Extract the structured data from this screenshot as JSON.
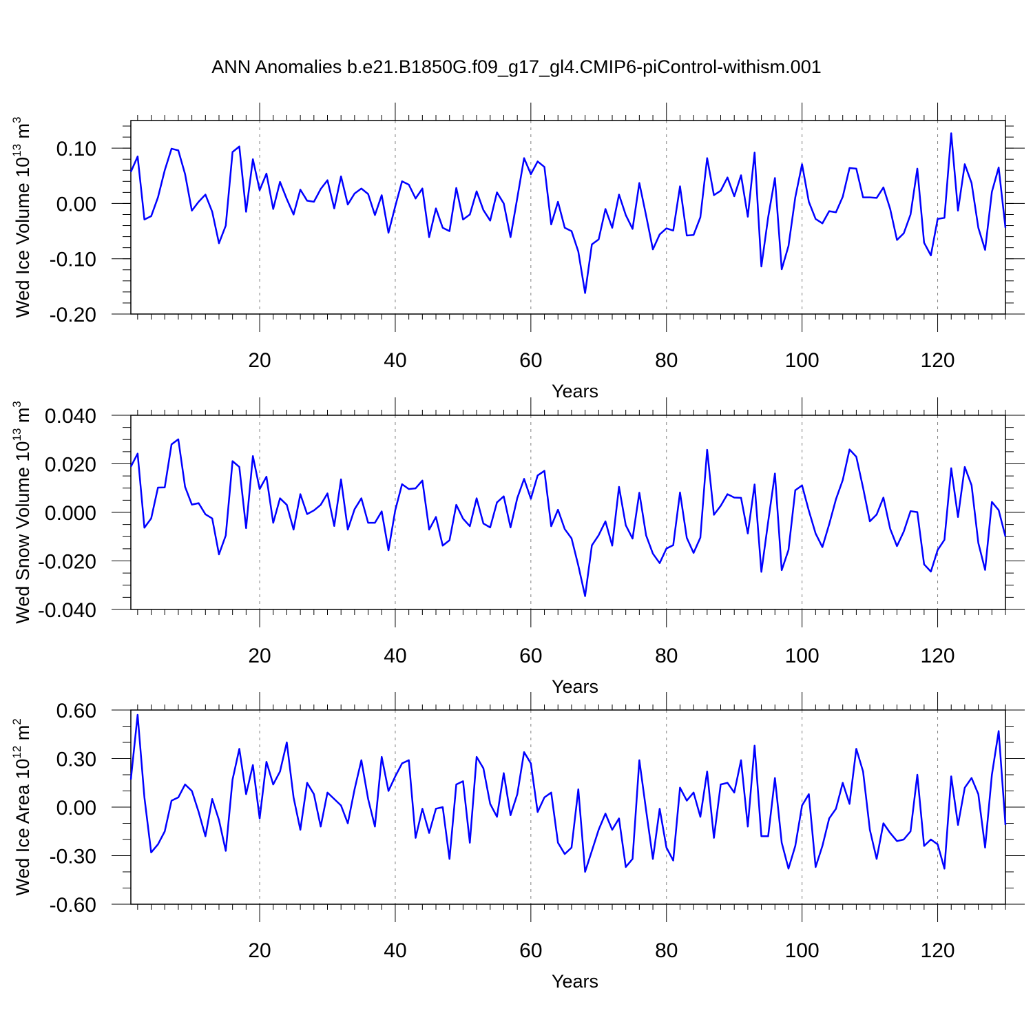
{
  "title": "ANN Anomalies b.e21.B1850G.f09_g17_gl4.CMIP6-piControl-withism.001",
  "line_color": "#0000ff",
  "chart_data": [
    {
      "type": "line",
      "name": "ice-volume",
      "ylabel": "Wed Ice Volume 10",
      "ylabel_sup": "13",
      "ylabel_unit": " m",
      "ylabel_unit_sup": "3",
      "xlabel": "Years",
      "xlim": [
        1,
        130
      ],
      "ylim": [
        -0.2,
        0.15
      ],
      "yticks": [
        -0.2,
        -0.1,
        0.0,
        0.1
      ],
      "ytick_labels": [
        "-0.20",
        "-0.10",
        "0.00",
        "0.10"
      ],
      "yminor_step": 0.02,
      "xticks": [
        20,
        40,
        60,
        80,
        100,
        120
      ],
      "xtick_labels": [
        "20",
        "40",
        "60",
        "80",
        "100",
        "120"
      ],
      "grid_x_dashed": true,
      "series": [
        {
          "x_start": 1,
          "values": [
            0.057,
            0.085,
            -0.029,
            -0.023,
            0.011,
            0.06,
            0.099,
            0.096,
            0.053,
            -0.013,
            0.003,
            0.016,
            -0.015,
            -0.072,
            -0.04,
            0.093,
            0.103,
            -0.015,
            0.08,
            0.024,
            0.054,
            -0.01,
            0.039,
            0.008,
            -0.02,
            0.025,
            0.005,
            0.003,
            0.026,
            0.042,
            -0.009,
            0.049,
            -0.002,
            0.018,
            0.027,
            0.017,
            -0.021,
            0.015,
            -0.053,
            -0.005,
            0.04,
            0.034,
            0.009,
            0.027,
            -0.061,
            -0.009,
            -0.044,
            -0.05,
            0.028,
            -0.029,
            -0.02,
            0.022,
            -0.012,
            -0.031,
            0.02,
            0.0,
            -0.061,
            0.01,
            0.082,
            0.053,
            0.076,
            0.066,
            -0.038,
            0.003,
            -0.044,
            -0.05,
            -0.087,
            -0.162,
            -0.074,
            -0.065,
            -0.01,
            -0.044,
            0.016,
            -0.021,
            -0.046,
            0.037,
            -0.022,
            -0.083,
            -0.056,
            -0.045,
            -0.049,
            0.031,
            -0.058,
            -0.057,
            -0.025,
            0.082,
            0.015,
            0.023,
            0.047,
            0.013,
            0.051,
            -0.024,
            0.092,
            -0.114,
            -0.025,
            0.046,
            -0.119,
            -0.077,
            0.011,
            0.071,
            0.003,
            -0.028,
            -0.036,
            -0.014,
            -0.016,
            0.012,
            0.064,
            0.063,
            0.011,
            0.011,
            0.01,
            0.029,
            -0.01,
            -0.066,
            -0.054,
            -0.02,
            0.063,
            -0.071,
            -0.094,
            -0.028,
            -0.026,
            0.127,
            -0.013,
            0.071,
            0.037,
            -0.044,
            -0.084,
            0.021,
            0.065,
            -0.044
          ]
        }
      ]
    },
    {
      "type": "line",
      "name": "snow-volume",
      "ylabel": "Wed Snow Volume 10",
      "ylabel_sup": "13",
      "ylabel_unit": " m",
      "ylabel_unit_sup": "3",
      "xlabel": "Years",
      "xlim": [
        1,
        130
      ],
      "ylim": [
        -0.04,
        0.04
      ],
      "yticks": [
        -0.04,
        -0.02,
        0.0,
        0.02,
        0.04
      ],
      "ytick_labels": [
        "-0.040",
        "-0.020",
        "0.000",
        "0.020",
        "0.040"
      ],
      "yminor_step": 0.005,
      "xticks": [
        20,
        40,
        60,
        80,
        100,
        120
      ],
      "xtick_labels": [
        "20",
        "40",
        "60",
        "80",
        "100",
        "120"
      ],
      "grid_x_dashed": true,
      "series": [
        {
          "x_start": 1,
          "values": [
            0.0188,
            0.0242,
            -0.0063,
            -0.0025,
            0.0102,
            0.0103,
            0.028,
            0.0301,
            0.0105,
            0.0032,
            0.0038,
            -0.0008,
            -0.0025,
            -0.0173,
            -0.0095,
            0.0211,
            0.0187,
            -0.0065,
            0.0232,
            0.0096,
            0.0147,
            -0.0043,
            0.0058,
            0.0031,
            -0.0071,
            0.0075,
            -0.0007,
            0.0008,
            0.0031,
            0.0078,
            -0.0056,
            0.0136,
            -0.0071,
            0.0013,
            0.0058,
            -0.0043,
            -0.0043,
            0.0004,
            -0.0156,
            0.0009,
            0.0116,
            0.0096,
            0.0099,
            0.0131,
            -0.0071,
            -0.0019,
            -0.0137,
            -0.0115,
            0.0031,
            -0.0026,
            -0.0057,
            0.0058,
            -0.0046,
            -0.0062,
            0.0041,
            0.0066,
            -0.0062,
            0.0059,
            0.0138,
            0.0056,
            0.0152,
            0.0171,
            -0.0057,
            0.0011,
            -0.0069,
            -0.0107,
            -0.0219,
            -0.0345,
            -0.0136,
            -0.0094,
            -0.0037,
            -0.0137,
            0.0105,
            -0.0053,
            -0.0108,
            0.0081,
            -0.0095,
            -0.017,
            -0.0209,
            -0.0149,
            -0.0135,
            0.0082,
            -0.0105,
            -0.0167,
            -0.0104,
            0.0258,
            -0.001,
            0.0027,
            0.0075,
            0.0061,
            0.006,
            -0.0087,
            0.0115,
            -0.0245,
            -0.0039,
            0.016,
            -0.0238,
            -0.0155,
            0.0091,
            0.0111,
            0.0007,
            -0.0087,
            -0.0143,
            -0.0049,
            0.0054,
            0.0133,
            0.0259,
            0.0229,
            0.0101,
            -0.0037,
            -0.0009,
            0.0061,
            -0.0068,
            -0.0139,
            -0.0079,
            0.0005,
            0.0001,
            -0.0214,
            -0.0244,
            -0.0155,
            -0.0113,
            0.0182,
            -0.0019,
            0.0187,
            0.0112,
            -0.0126,
            -0.0237,
            0.0043,
            0.0009,
            -0.01
          ]
        }
      ]
    },
    {
      "type": "line",
      "name": "ice-area",
      "ylabel": "Wed Ice Area 10",
      "ylabel_sup": "12",
      "ylabel_unit": " m",
      "ylabel_unit_sup": "2",
      "xlabel": "Years",
      "xlim": [
        1,
        130
      ],
      "ylim": [
        -0.6,
        0.6
      ],
      "yticks": [
        -0.6,
        -0.3,
        0.0,
        0.3,
        0.6
      ],
      "ytick_labels": [
        "-0.60",
        "-0.30",
        "0.00",
        "0.30",
        "0.60"
      ],
      "yminor_step": 0.1,
      "xticks": [
        20,
        40,
        60,
        80,
        100,
        120
      ],
      "xtick_labels": [
        "20",
        "40",
        "60",
        "80",
        "100",
        "120"
      ],
      "grid_x_dashed": true,
      "series": [
        {
          "x_start": 1,
          "values": [
            0.17,
            0.57,
            0.06,
            -0.28,
            -0.23,
            -0.15,
            0.04,
            0.06,
            0.14,
            0.1,
            -0.03,
            -0.18,
            0.05,
            -0.08,
            -0.27,
            0.17,
            0.36,
            0.08,
            0.26,
            -0.07,
            0.28,
            0.14,
            0.22,
            0.4,
            0.06,
            -0.14,
            0.15,
            0.08,
            -0.12,
            0.09,
            0.05,
            0.01,
            -0.1,
            0.11,
            0.29,
            0.05,
            -0.12,
            0.31,
            0.1,
            0.19,
            0.27,
            0.29,
            -0.19,
            -0.01,
            -0.16,
            -0.01,
            0.0,
            -0.32,
            0.14,
            0.16,
            -0.22,
            0.31,
            0.24,
            0.02,
            -0.06,
            0.21,
            -0.05,
            0.08,
            0.34,
            0.27,
            -0.03,
            0.06,
            0.09,
            -0.22,
            -0.29,
            -0.25,
            0.11,
            -0.4,
            -0.27,
            -0.14,
            -0.04,
            -0.14,
            -0.07,
            -0.37,
            -0.32,
            0.29,
            -0.02,
            -0.32,
            -0.01,
            -0.25,
            -0.33,
            0.12,
            0.04,
            0.09,
            -0.06,
            0.22,
            -0.19,
            0.14,
            0.15,
            0.09,
            0.29,
            -0.12,
            0.38,
            -0.18,
            -0.18,
            0.18,
            -0.22,
            -0.38,
            -0.24,
            0.01,
            0.08,
            -0.37,
            -0.24,
            -0.07,
            -0.01,
            0.15,
            0.02,
            0.36,
            0.22,
            -0.14,
            -0.32,
            -0.1,
            -0.16,
            -0.21,
            -0.2,
            -0.15,
            0.2,
            -0.24,
            -0.2,
            -0.23,
            -0.38,
            0.19,
            -0.11,
            0.12,
            0.18,
            0.08,
            -0.25,
            0.2,
            0.47,
            -0.11
          ]
        }
      ]
    }
  ]
}
